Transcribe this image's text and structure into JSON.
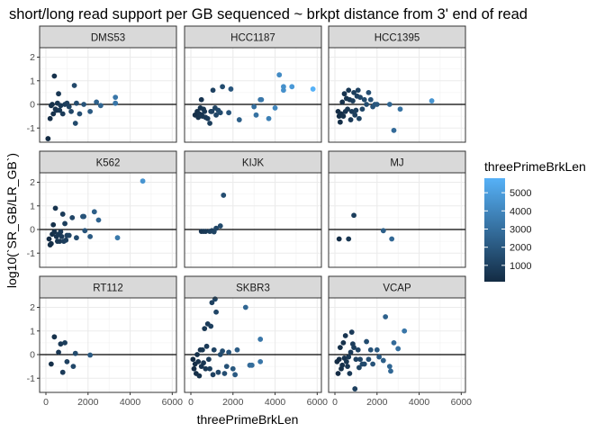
{
  "chart_data": {
    "type": "scatter",
    "title": "short/long read support per GB sequenced ~ brkpt distance from 3' end of read",
    "xlabel": "threePrimeBrkLen",
    "ylabel": "log10(`SR_GB/LR_GB`)",
    "xlim": [
      -300,
      6200
    ],
    "ylim": [
      -1.6,
      2.4
    ],
    "x_ticks": [
      0,
      2000,
      4000,
      6000
    ],
    "x_tick_labels": [
      "0",
      "2000",
      "4000",
      "6000"
    ],
    "y_ticks": [
      -1,
      0,
      1,
      2
    ],
    "y_tick_labels": [
      "-1",
      "0",
      "1",
      "2"
    ],
    "reference_line_y": 0,
    "grid": true,
    "legend": {
      "title": "threePrimeBrkLen",
      "position": "right",
      "scale_min": 100,
      "scale_max": 5800,
      "ticks": [
        1000,
        2000,
        3000,
        4000,
        5000
      ],
      "tick_labels": [
        "1000",
        "2000",
        "3000",
        "4000",
        "5000"
      ],
      "color_low": "#132B43",
      "color_high": "#56B1F7"
    },
    "panels": [
      {
        "label": "DMS53",
        "points": [
          [
            100,
            -1.45
          ],
          [
            200,
            -0.6
          ],
          [
            250,
            -0.05
          ],
          [
            300,
            0
          ],
          [
            350,
            -0.4
          ],
          [
            400,
            1.2
          ],
          [
            450,
            -0.2
          ],
          [
            500,
            -0.25
          ],
          [
            550,
            0.05
          ],
          [
            600,
            0.45
          ],
          [
            650,
            -0.25
          ],
          [
            700,
            -0.05
          ],
          [
            800,
            -0.4
          ],
          [
            900,
            0
          ],
          [
            1000,
            0.05
          ],
          [
            1100,
            -0.1
          ],
          [
            1200,
            -0.3
          ],
          [
            1350,
            0.8
          ],
          [
            1400,
            -0.8
          ],
          [
            1450,
            0.05
          ],
          [
            1600,
            -0.4
          ],
          [
            1800,
            0
          ],
          [
            2100,
            -0.3
          ],
          [
            2400,
            0.1
          ],
          [
            2600,
            -0.05
          ],
          [
            3300,
            0.3
          ],
          [
            3300,
            0.05
          ]
        ]
      },
      {
        "label": "HCC1187",
        "points": [
          [
            200,
            -0.45
          ],
          [
            300,
            -0.3
          ],
          [
            350,
            -0.55
          ],
          [
            400,
            -0.4
          ],
          [
            450,
            -0.15
          ],
          [
            500,
            0.2
          ],
          [
            500,
            -0.45
          ],
          [
            550,
            -0.5
          ],
          [
            600,
            -0.2
          ],
          [
            650,
            -0.3
          ],
          [
            700,
            -0.55
          ],
          [
            800,
            -0.6
          ],
          [
            900,
            -0.8
          ],
          [
            950,
            -0.3
          ],
          [
            1000,
            -0.3
          ],
          [
            1050,
            0.6
          ],
          [
            1150,
            -0.15
          ],
          [
            1200,
            -0.45
          ],
          [
            1300,
            -0.25
          ],
          [
            1400,
            -0.35
          ],
          [
            1500,
            0.75
          ],
          [
            1800,
            -0.35
          ],
          [
            1900,
            0.65
          ],
          [
            2300,
            -0.65
          ],
          [
            3000,
            -0.1
          ],
          [
            3100,
            -0.45
          ],
          [
            3300,
            0.2
          ],
          [
            3350,
            0.2
          ],
          [
            3700,
            -0.6
          ],
          [
            4000,
            -0.15
          ],
          [
            4200,
            1.25
          ],
          [
            4400,
            0.75
          ],
          [
            4400,
            0.6
          ],
          [
            4800,
            0.75
          ],
          [
            5800,
            0.65
          ]
        ]
      },
      {
        "label": "HCC1395",
        "points": [
          [
            150,
            -0.3
          ],
          [
            200,
            -0.5
          ],
          [
            250,
            -0.75
          ],
          [
            300,
            -0.4
          ],
          [
            350,
            0.1
          ],
          [
            400,
            -0.5
          ],
          [
            450,
            0.45
          ],
          [
            500,
            -0.3
          ],
          [
            550,
            0.25
          ],
          [
            600,
            -0.2
          ],
          [
            650,
            0.6
          ],
          [
            700,
            0.2
          ],
          [
            750,
            -0.65
          ],
          [
            800,
            -0.3
          ],
          [
            850,
            0.15
          ],
          [
            900,
            0.5
          ],
          [
            950,
            -0.45
          ],
          [
            1000,
            -0.25
          ],
          [
            1050,
            0.35
          ],
          [
            1100,
            0.6
          ],
          [
            1150,
            -0.6
          ],
          [
            1200,
            0.3
          ],
          [
            1300,
            -0.2
          ],
          [
            1400,
            0.2
          ],
          [
            1500,
            0
          ],
          [
            1600,
            0.5
          ],
          [
            1700,
            0.2
          ],
          [
            1800,
            -0.1
          ],
          [
            1900,
            0
          ],
          [
            2000,
            0
          ],
          [
            2600,
            0
          ],
          [
            2800,
            -1.1
          ],
          [
            3100,
            -0.2
          ],
          [
            4600,
            0.15
          ]
        ]
      },
      {
        "label": "K562",
        "points": [
          [
            150,
            -0.4
          ],
          [
            200,
            -0.65
          ],
          [
            250,
            -0.6
          ],
          [
            300,
            -0.2
          ],
          [
            350,
            0.2
          ],
          [
            400,
            -0.1
          ],
          [
            450,
            0.9
          ],
          [
            500,
            -0.3
          ],
          [
            550,
            -0.5
          ],
          [
            600,
            -0.2
          ],
          [
            650,
            -0.5
          ],
          [
            700,
            -0.1
          ],
          [
            750,
            -0.3
          ],
          [
            800,
            0.65
          ],
          [
            850,
            -0.5
          ],
          [
            900,
            0.25
          ],
          [
            950,
            -0.45
          ],
          [
            1000,
            -0.25
          ],
          [
            1100,
            -0.25
          ],
          [
            1250,
            0.5
          ],
          [
            1450,
            -0.35
          ],
          [
            1750,
            0.55
          ],
          [
            1800,
            0.55
          ],
          [
            1850,
            -0.05
          ],
          [
            2100,
            -0.3
          ],
          [
            2300,
            0.75
          ],
          [
            2500,
            0.4
          ],
          [
            3400,
            -0.35
          ],
          [
            4600,
            2.05
          ]
        ]
      },
      {
        "label": "KIJK",
        "points": [
          [
            500,
            -0.08
          ],
          [
            600,
            -0.08
          ],
          [
            700,
            -0.08
          ],
          [
            900,
            -0.08
          ],
          [
            1000,
            -0.05
          ],
          [
            1100,
            -0.1
          ],
          [
            1200,
            0.05
          ],
          [
            1400,
            0.15
          ],
          [
            1550,
            1.45
          ]
        ]
      },
      {
        "label": "MJ",
        "points": [
          [
            200,
            -0.4
          ],
          [
            650,
            -0.4
          ],
          [
            900,
            0.6
          ],
          [
            2300,
            -0.05
          ],
          [
            2700,
            -0.4
          ]
        ]
      },
      {
        "label": "RT112",
        "points": [
          [
            250,
            -0.4
          ],
          [
            400,
            0.75
          ],
          [
            600,
            0.1
          ],
          [
            700,
            0.45
          ],
          [
            800,
            -0.75
          ],
          [
            900,
            0.5
          ],
          [
            1000,
            -0.3
          ],
          [
            1300,
            -0.5
          ],
          [
            1400,
            0.05
          ],
          [
            2100,
            -0.02
          ]
        ]
      },
      {
        "label": "SKBR3",
        "points": [
          [
            100,
            -0.2
          ],
          [
            150,
            -0.6
          ],
          [
            200,
            -0.4
          ],
          [
            250,
            -0.8
          ],
          [
            300,
            0
          ],
          [
            350,
            -0.3
          ],
          [
            400,
            -0.9
          ],
          [
            450,
            0.2
          ],
          [
            500,
            -0.5
          ],
          [
            550,
            0.2
          ],
          [
            600,
            -0.35
          ],
          [
            650,
            1.1
          ],
          [
            700,
            -0.6
          ],
          [
            750,
            0.35
          ],
          [
            800,
            1.3
          ],
          [
            850,
            -0.2
          ],
          [
            900,
            -0.6
          ],
          [
            950,
            1.2
          ],
          [
            1000,
            2.2
          ],
          [
            1050,
            -0.85
          ],
          [
            1100,
            0.2
          ],
          [
            1150,
            2.35
          ],
          [
            1200,
            1.8
          ],
          [
            1300,
            -0.75
          ],
          [
            1400,
            0
          ],
          [
            1500,
            0.15
          ],
          [
            1600,
            -0.8
          ],
          [
            1700,
            -0.5
          ],
          [
            1800,
            0.1
          ],
          [
            2000,
            -0.6
          ],
          [
            2100,
            -0.85
          ],
          [
            2200,
            0.2
          ],
          [
            2600,
            2
          ],
          [
            2800,
            -0.45
          ],
          [
            2900,
            -0.45
          ],
          [
            3300,
            -0.3
          ],
          [
            3300,
            0.65
          ]
        ]
      },
      {
        "label": "VCAP",
        "points": [
          [
            100,
            -0.3
          ],
          [
            150,
            -0.8
          ],
          [
            200,
            -0.2
          ],
          [
            250,
            0.3
          ],
          [
            300,
            -0.6
          ],
          [
            350,
            -0.45
          ],
          [
            400,
            0.5
          ],
          [
            450,
            -0.15
          ],
          [
            500,
            0.8
          ],
          [
            550,
            -0.3
          ],
          [
            600,
            -0.5
          ],
          [
            650,
            -0.1
          ],
          [
            700,
            -0.8
          ],
          [
            750,
            0.1
          ],
          [
            800,
            0.95
          ],
          [
            850,
            0.45
          ],
          [
            900,
            0.3
          ],
          [
            950,
            -1.45
          ],
          [
            1000,
            -0.2
          ],
          [
            1100,
            0.2
          ],
          [
            1150,
            -0.55
          ],
          [
            1200,
            -0.2
          ],
          [
            1300,
            -0.4
          ],
          [
            1400,
            -0.4
          ],
          [
            1500,
            0.55
          ],
          [
            1600,
            -0.2
          ],
          [
            1700,
            0.2
          ],
          [
            1800,
            -0.4
          ],
          [
            2000,
            0.2
          ],
          [
            2100,
            -0.1
          ],
          [
            2300,
            -0.25
          ],
          [
            2400,
            1.6
          ],
          [
            2600,
            -0.5
          ],
          [
            2650,
            -0.7
          ],
          [
            2800,
            0.5
          ],
          [
            3000,
            0.25
          ],
          [
            3300,
            1
          ]
        ]
      }
    ]
  }
}
